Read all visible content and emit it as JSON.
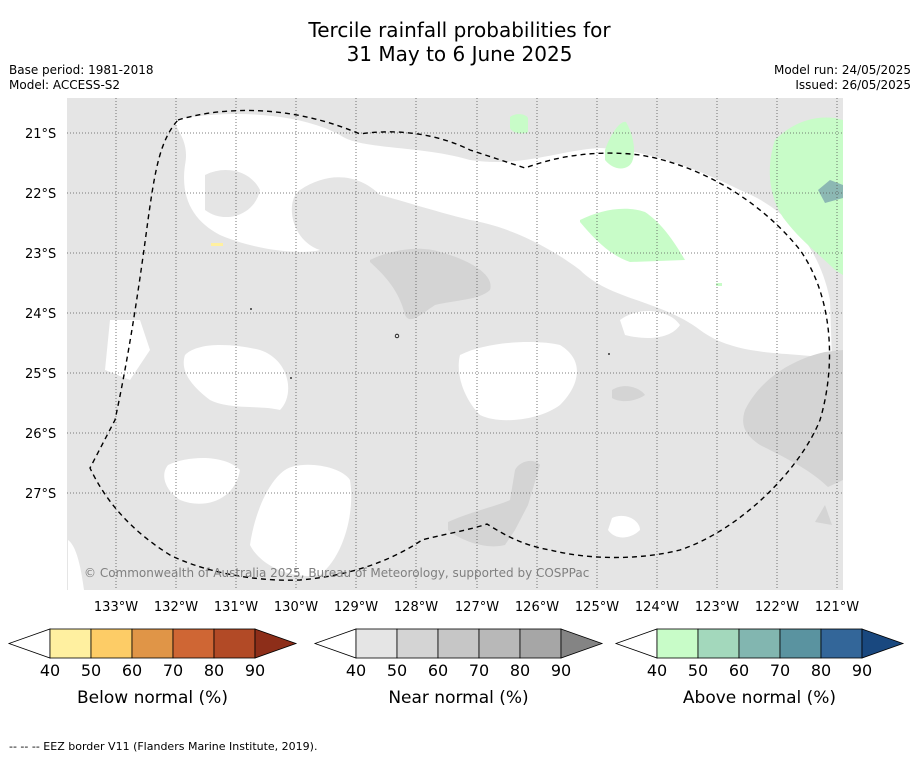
{
  "title": {
    "line1": "Tercile rainfall probabilities for",
    "line2": "31 May to 6 June 2025"
  },
  "meta": {
    "base_period": "Base period: 1981-2018",
    "model": "Model: ACCESS-S2",
    "model_run": "Model run: 24/05/2025",
    "issued": "Issued: 26/05/2025"
  },
  "map": {
    "latitude_labels": [
      "21°S",
      "22°S",
      "23°S",
      "24°S",
      "25°S",
      "26°S",
      "27°S"
    ],
    "longitude_labels": [
      "133°W",
      "132°W",
      "131°W",
      "130°W",
      "129°W",
      "128°W",
      "127°W",
      "126°W",
      "125°W",
      "124°W",
      "123°W",
      "122°W",
      "121°W"
    ],
    "copyright": "© Commonwealth of Australia 2025, Bureau of Meteorology, supported by COSPPac",
    "colors": {
      "near_normal_40": "#e5e5e5",
      "near_normal_50": "#d4d4d4",
      "above_normal_40": "#c8fcc8",
      "above_normal_60": "#8cb8b3",
      "below_normal_40": "#fff0a0"
    }
  },
  "colorbars": [
    {
      "title": "Below normal (%)",
      "ticks": [
        "40",
        "50",
        "60",
        "70",
        "80",
        "90"
      ],
      "colors": [
        "#ffffff",
        "#fff0a0",
        "#fdcc66",
        "#e09547",
        "#cf6634",
        "#b24a26",
        "#8d2e19"
      ]
    },
    {
      "title": "Near normal (%)",
      "ticks": [
        "40",
        "50",
        "60",
        "70",
        "80",
        "90"
      ],
      "colors": [
        "#ffffff",
        "#e5e5e5",
        "#d4d4d4",
        "#c6c6c6",
        "#b8b8b8",
        "#a6a6a6",
        "#848484"
      ]
    },
    {
      "title": "Above normal (%)",
      "ticks": [
        "40",
        "50",
        "60",
        "70",
        "80",
        "90"
      ],
      "colors": [
        "#ffffff",
        "#c8fcc8",
        "#a3d8bc",
        "#82b6b0",
        "#5a93a0",
        "#336699",
        "#19487f"
      ]
    }
  ],
  "footer": "--  --  -- EEZ border V11 (Flanders Marine Institute, 2019)."
}
